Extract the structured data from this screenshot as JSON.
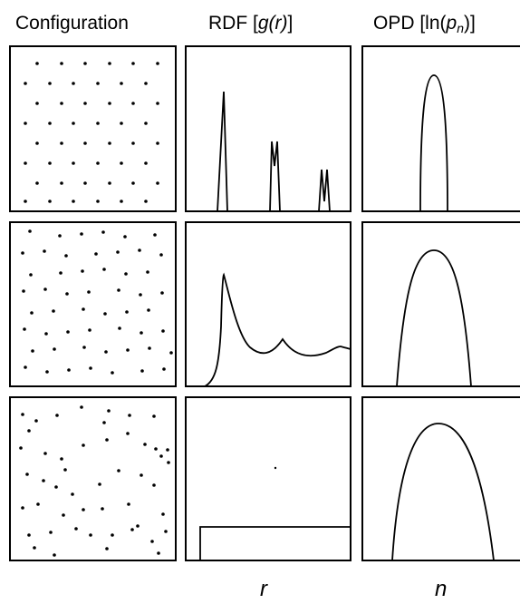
{
  "headers": {
    "configuration": "Configuration",
    "rdf_prefix": "RDF [",
    "rdf_func": "g",
    "rdf_arg": "(r)",
    "rdf_suffix": "]",
    "opd_prefix": "OPD [ln(",
    "opd_var": "p",
    "opd_sub": "n",
    "opd_suffix": ")]"
  },
  "axis_labels": {
    "rdf_x": "r",
    "opd_x": "n"
  },
  "rows": [
    {
      "row": "top",
      "configuration": "regular lattice",
      "rdf": "sharp peaks",
      "opd": "narrow"
    },
    {
      "row": "middle",
      "configuration": "distorted lattice",
      "rdf": "damped peaks",
      "opd": "medium"
    },
    {
      "row": "bottom",
      "configuration": "random",
      "rdf": "flat (step)",
      "opd": "wide"
    }
  ]
}
